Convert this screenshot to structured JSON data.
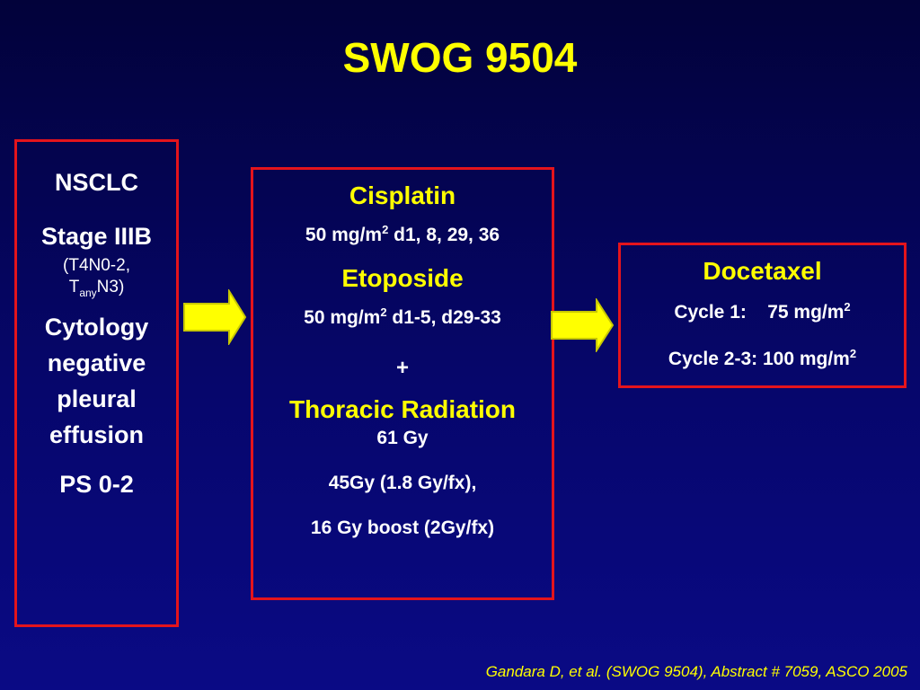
{
  "title": "SWOG 9504",
  "patient_box": {
    "line1": "NSCLC",
    "line2": "Stage IIIB",
    "line3": "(T4N0-2,",
    "line4_t": "T",
    "line4_sub": "any",
    "line4_rest": "N3)",
    "line5a": "Cytology",
    "line5b": "negative",
    "line5c": "pleural",
    "line5d": "effusion",
    "line6": "PS 0-2"
  },
  "induction_box": {
    "drug1": "Cisplatin",
    "drug1_dose_a": "50 mg/m",
    "drug1_dose_sup": "2",
    "drug1_dose_b": " d1, 8, 29, 36",
    "drug2": "Etoposide",
    "drug2_dose_a": "50 mg/m",
    "drug2_dose_sup": "2",
    "drug2_dose_b": " d1-5, d29-33",
    "plus": "+",
    "radiation": "Thoracic Radiation",
    "rad_line1": "61 Gy",
    "rad_line2": "45Gy (1.8 Gy/fx),",
    "rad_line3": "16 Gy boost (2Gy/fx)"
  },
  "consolidation_box": {
    "drug": "Docetaxel",
    "cycle1_a": "Cycle 1:    75 mg/m",
    "cycle1_sup": "2",
    "cycle2_a": "Cycle 2-3: 100 mg/m",
    "cycle2_sup": "2"
  },
  "footer": "Gandara D, et al. (SWOG 9504), Abstract # 7059, ASCO 2005",
  "colors": {
    "background_top": "#02023a",
    "background_bottom": "#0a0a85",
    "accent_yellow": "#ffff00",
    "border_red": "#e4141c"
  }
}
